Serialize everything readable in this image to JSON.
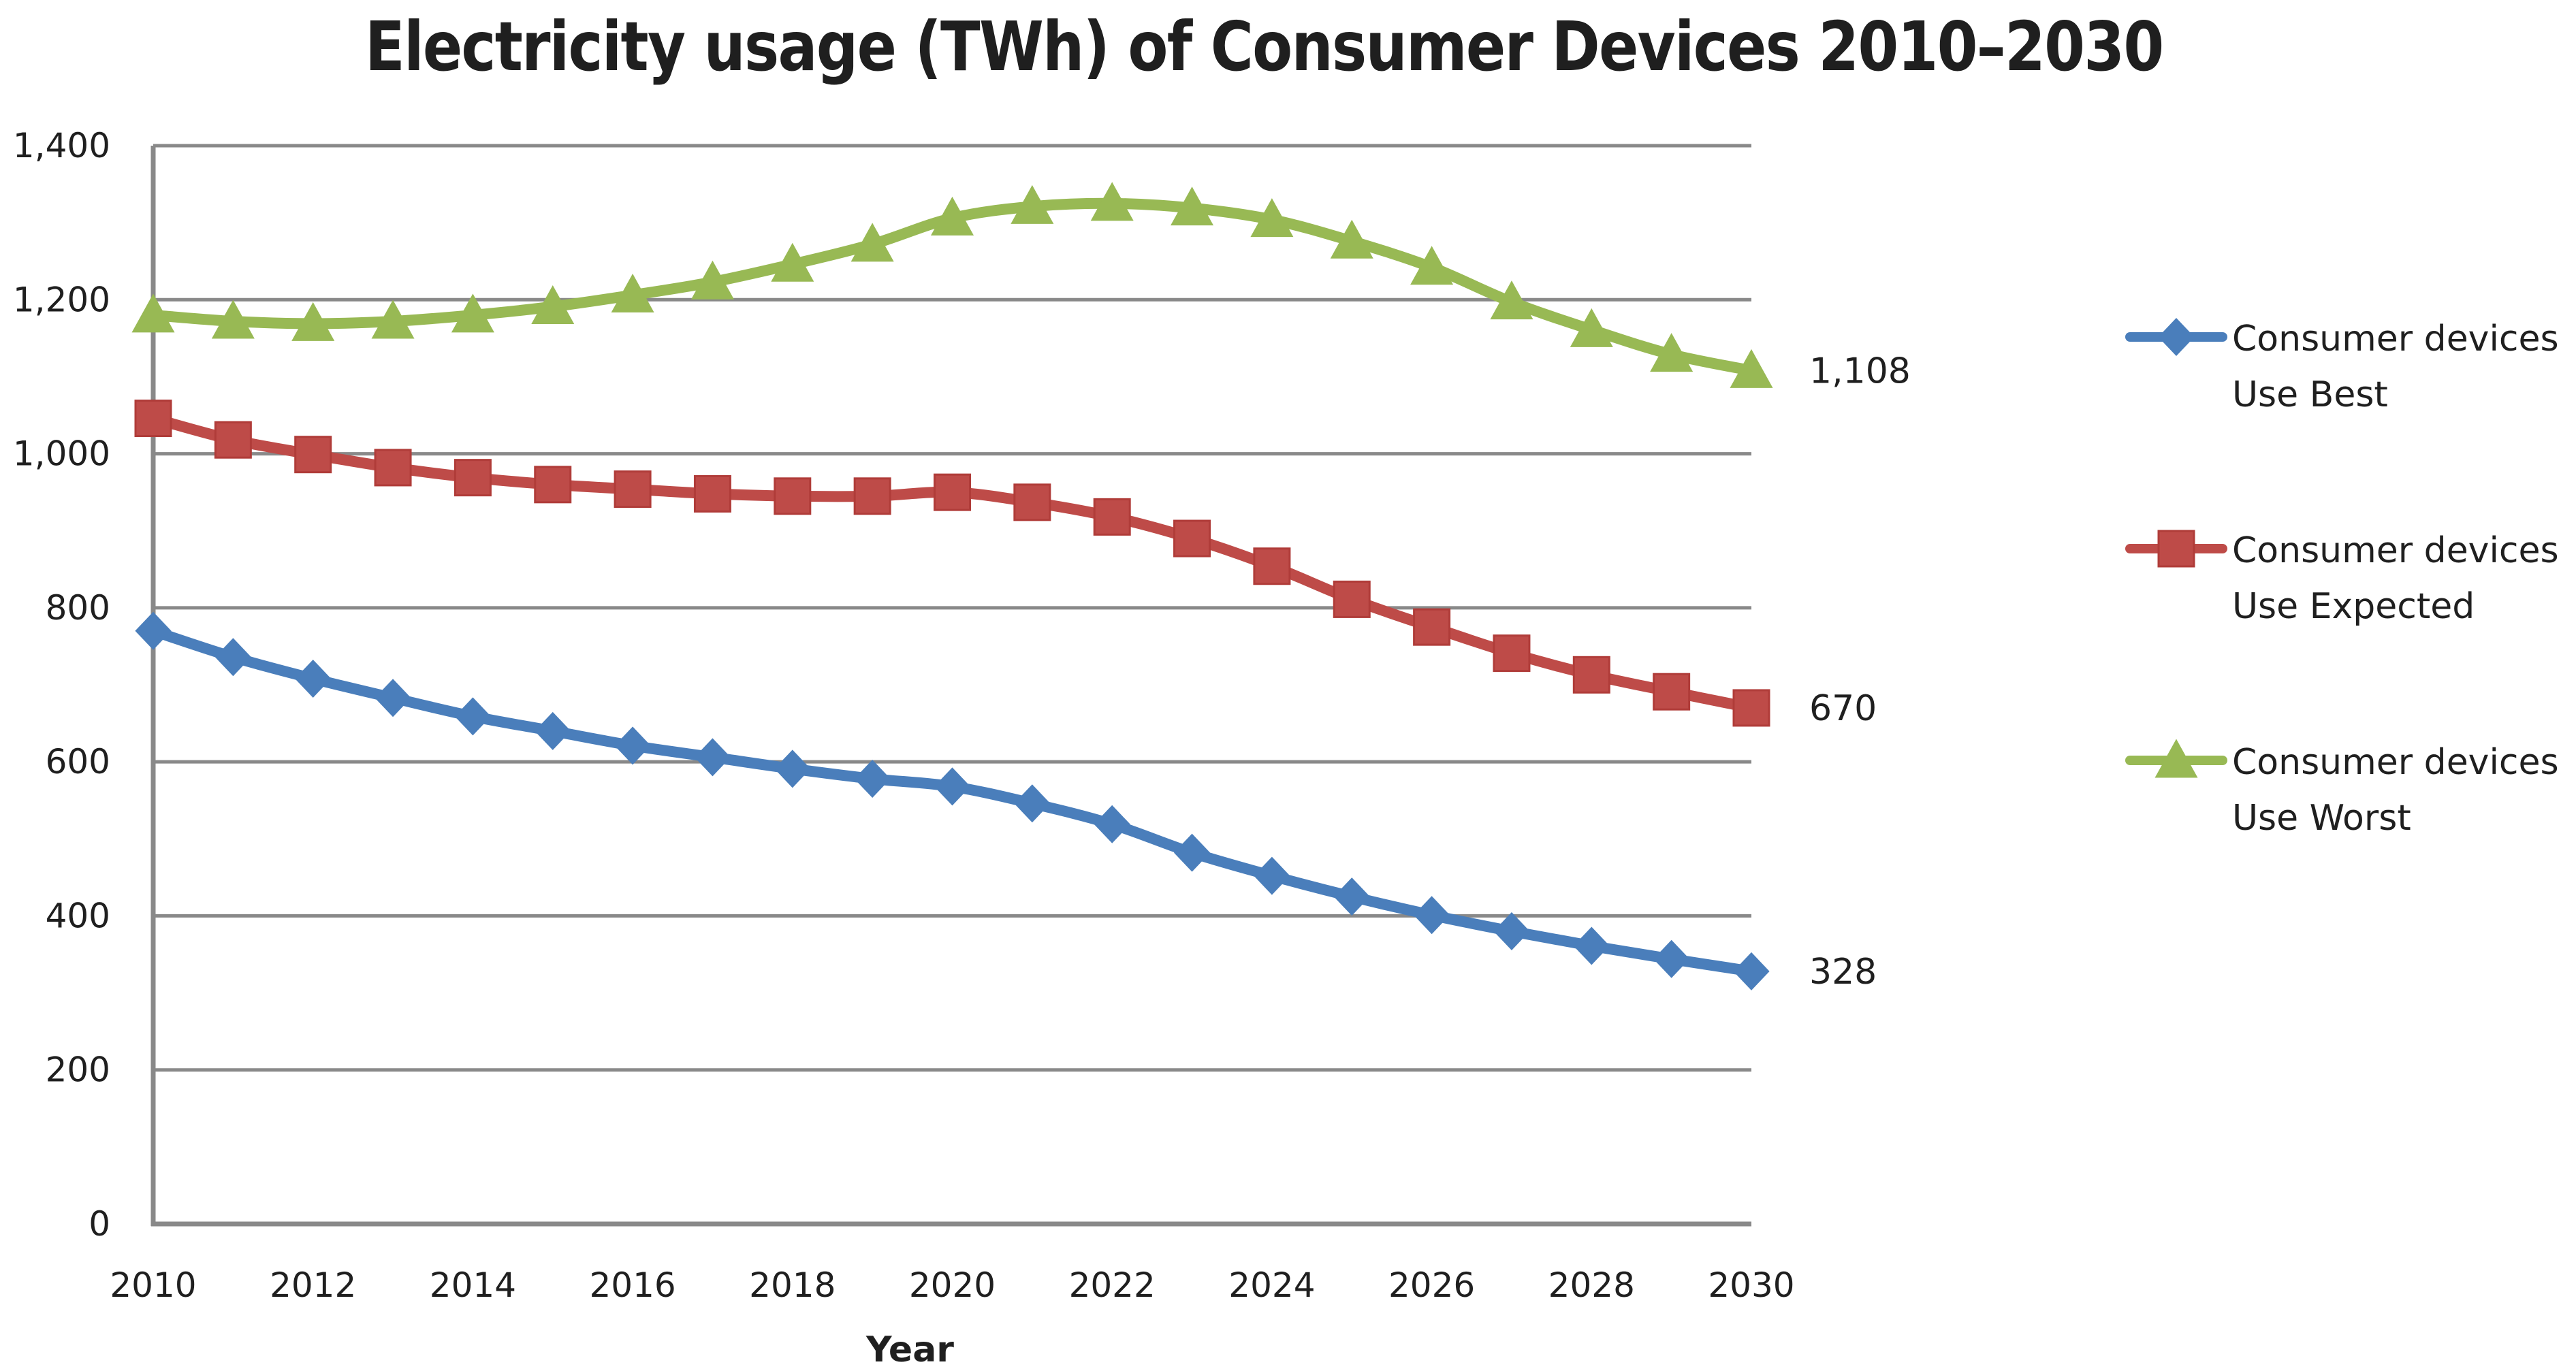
{
  "chart_data": {
    "type": "line",
    "title": "Electricity usage (TWh) of Consumer Devices 2010–2030",
    "xlabel": "Year",
    "ylabel": "",
    "x": [
      2010,
      2011,
      2012,
      2013,
      2014,
      2015,
      2016,
      2017,
      2018,
      2019,
      2020,
      2021,
      2022,
      2023,
      2024,
      2025,
      2026,
      2027,
      2028,
      2029,
      2030
    ],
    "x_tick_labels": [
      "2010",
      "2012",
      "2014",
      "2016",
      "2018",
      "2020",
      "2022",
      "2024",
      "2026",
      "2028",
      "2030"
    ],
    "xlim": [
      2010,
      2030
    ],
    "ylim": [
      0,
      1400
    ],
    "y_tick_labels": [
      "0",
      "200",
      "400",
      "600",
      "800",
      "1,000",
      "1,200",
      "1,400"
    ],
    "y_ticks": [
      0,
      200,
      400,
      600,
      800,
      1000,
      1200,
      1400
    ],
    "grid": true,
    "legend_position": "right",
    "series": [
      {
        "name": "Consumer devices Use Best",
        "legend_lines": [
          "Consumer devices",
          "Use Best"
        ],
        "color": "#4a7ebb",
        "marker": "diamond",
        "smooth": true,
        "values": [
          770,
          736,
          708,
          683,
          659,
          640,
          621,
          606,
          591,
          578,
          568,
          546,
          519,
          482,
          452,
          425,
          401,
          380,
          361,
          344,
          328
        ],
        "end_label": "328"
      },
      {
        "name": "Consumer devices Use Expected",
        "legend_lines": [
          "Consumer devices",
          "Use Expected"
        ],
        "color": "#be4b48",
        "marker": "square",
        "smooth": true,
        "values": [
          1046,
          1018,
          999,
          982,
          969,
          960,
          954,
          948,
          945,
          945,
          950,
          937,
          918,
          890,
          854,
          811,
          775,
          741,
          713,
          691,
          670
        ],
        "end_label": "670"
      },
      {
        "name": "Consumer devices Use Worst",
        "legend_lines": [
          "Consumer devices",
          "Use Worst"
        ],
        "color": "#98b954",
        "marker": "triangle",
        "smooth": true,
        "values": [
          1180,
          1172,
          1169,
          1172,
          1180,
          1191,
          1206,
          1223,
          1246,
          1272,
          1306,
          1321,
          1325,
          1319,
          1304,
          1276,
          1242,
          1197,
          1161,
          1129,
          1108
        ],
        "end_label": "1,108"
      }
    ]
  },
  "colors": {
    "gridline": "#898989",
    "axis": "#898989",
    "text": "#1f1f1f"
  }
}
